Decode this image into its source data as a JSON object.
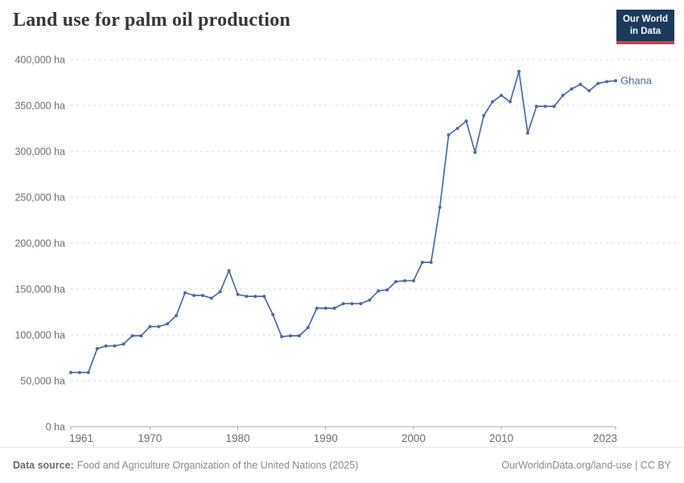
{
  "header": {
    "title": "Land use for palm oil production",
    "logo": {
      "line1": "Our World",
      "line2": "in Data"
    }
  },
  "chart_data": {
    "type": "line",
    "title": "Land use for palm oil production",
    "unit": "ha",
    "grid": "horizontal-dashed",
    "legend_position": "end-of-line",
    "xlim": [
      1961,
      2023
    ],
    "ylim": [
      0,
      400000
    ],
    "xticks": [
      1961,
      1970,
      1980,
      1990,
      2000,
      2010,
      2023
    ],
    "yticks": [
      0,
      50000,
      100000,
      150000,
      200000,
      250000,
      300000,
      350000,
      400000
    ],
    "ytick_labels": [
      "0 ha",
      "50,000 ha",
      "100,000 ha",
      "150,000 ha",
      "200,000 ha",
      "250,000 ha",
      "300,000 ha",
      "350,000 ha",
      "400,000 ha"
    ],
    "series": [
      {
        "name": "Ghana",
        "color": "#4C6CA8",
        "x": [
          1961,
          1962,
          1963,
          1964,
          1965,
          1966,
          1967,
          1968,
          1969,
          1970,
          1971,
          1972,
          1973,
          1974,
          1975,
          1976,
          1977,
          1978,
          1979,
          1980,
          1981,
          1982,
          1983,
          1984,
          1985,
          1986,
          1987,
          1988,
          1989,
          1990,
          1991,
          1992,
          1993,
          1994,
          1995,
          1996,
          1997,
          1998,
          1999,
          2000,
          2001,
          2002,
          2003,
          2004,
          2005,
          2006,
          2007,
          2008,
          2009,
          2010,
          2011,
          2012,
          2013,
          2014,
          2015,
          2016,
          2017,
          2018,
          2019,
          2020,
          2021,
          2022,
          2023
        ],
        "values": [
          59000,
          59000,
          59000,
          85000,
          88000,
          88000,
          90000,
          99000,
          99000,
          109000,
          109000,
          112000,
          121000,
          146000,
          143000,
          143000,
          140000,
          147000,
          170000,
          144000,
          142000,
          142000,
          142000,
          122000,
          98000,
          99000,
          99000,
          108000,
          129000,
          129000,
          129000,
          134000,
          134000,
          134000,
          138000,
          148000,
          149000,
          158000,
          159000,
          159000,
          179000,
          179000,
          239000,
          318000,
          325000,
          333000,
          299000,
          339000,
          354000,
          361000,
          354000,
          387000,
          320000,
          349000,
          349000,
          349000,
          361000,
          368000,
          373000,
          366000,
          374000,
          376000,
          377000
        ]
      }
    ]
  },
  "footer": {
    "source_label": "Data source:",
    "source_text": "Food and Agriculture Organization of the United Nations (2025)",
    "credit_text": "OurWorldinData.org/land-use | CC BY"
  },
  "colors": {
    "line": "#4C6CA8",
    "logo_background": "#1B3A5C",
    "logo_underline": "#D73C45",
    "gridline": "#dadada",
    "axis": "#a8a8a8"
  }
}
